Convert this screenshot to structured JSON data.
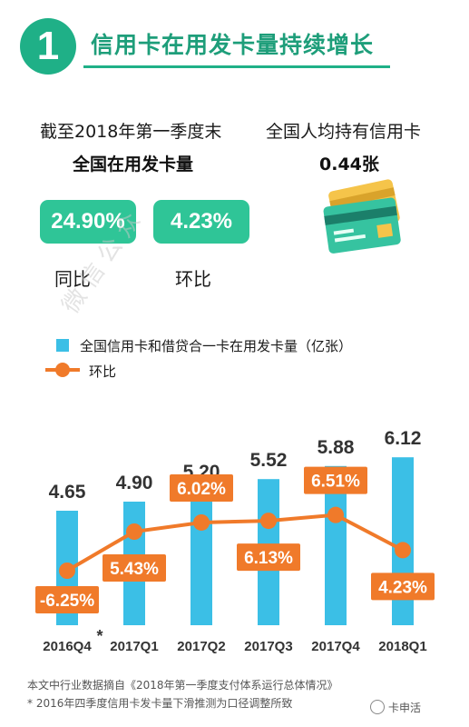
{
  "header": {
    "number": "1",
    "title": "信用卡在用发卡量持续增长"
  },
  "stats": {
    "left_label": "截至2018年第一季度末",
    "left_value_label": "全国在用发卡量",
    "right_label": "全国人均持有信用卡",
    "right_value": "0.44张",
    "yoy_value": "24.90%",
    "yoy_label": "同比",
    "qoq_value": "4.23%",
    "qoq_label": "环比"
  },
  "watermark": "微信公众",
  "legend": {
    "bar_label": "全国信用卡和借贷合一卡在用发卡量（亿张）",
    "line_label": "环比"
  },
  "colors": {
    "accent": "#1fb087",
    "bar": "#3bbfe6",
    "line": "#f07a2a"
  },
  "chart_data": {
    "type": "bar",
    "categories": [
      "2016Q4",
      "2017Q1",
      "2017Q2",
      "2017Q3",
      "2017Q4",
      "2018Q1"
    ],
    "category_marks": [
      "*",
      "",
      "",
      "",
      "",
      ""
    ],
    "series": [
      {
        "name": "全国信用卡和借贷合一卡在用发卡量（亿张）",
        "type": "bar",
        "values": [
          4.65,
          4.9,
          5.2,
          5.52,
          5.88,
          6.12
        ],
        "labels": [
          "4.65",
          "4.90",
          "5.20",
          "5.52",
          "5.88",
          "6.12"
        ]
      },
      {
        "name": "环比",
        "type": "line",
        "values": [
          -6.25,
          5.43,
          6.02,
          6.13,
          6.51,
          4.23
        ],
        "labels": [
          "-6.25%",
          "5.43%",
          "6.02%",
          "6.13%",
          "6.51%",
          "4.23%"
        ]
      }
    ],
    "legend": "top-left",
    "grid": false
  },
  "footnotes": {
    "source": "本文中行业数据摘自《2018年第一季度支付体系运行总体情况》",
    "note": "* 2016年四季度信用卡发卡量下滑推测为口径调整所致"
  },
  "brand": "卡申活"
}
